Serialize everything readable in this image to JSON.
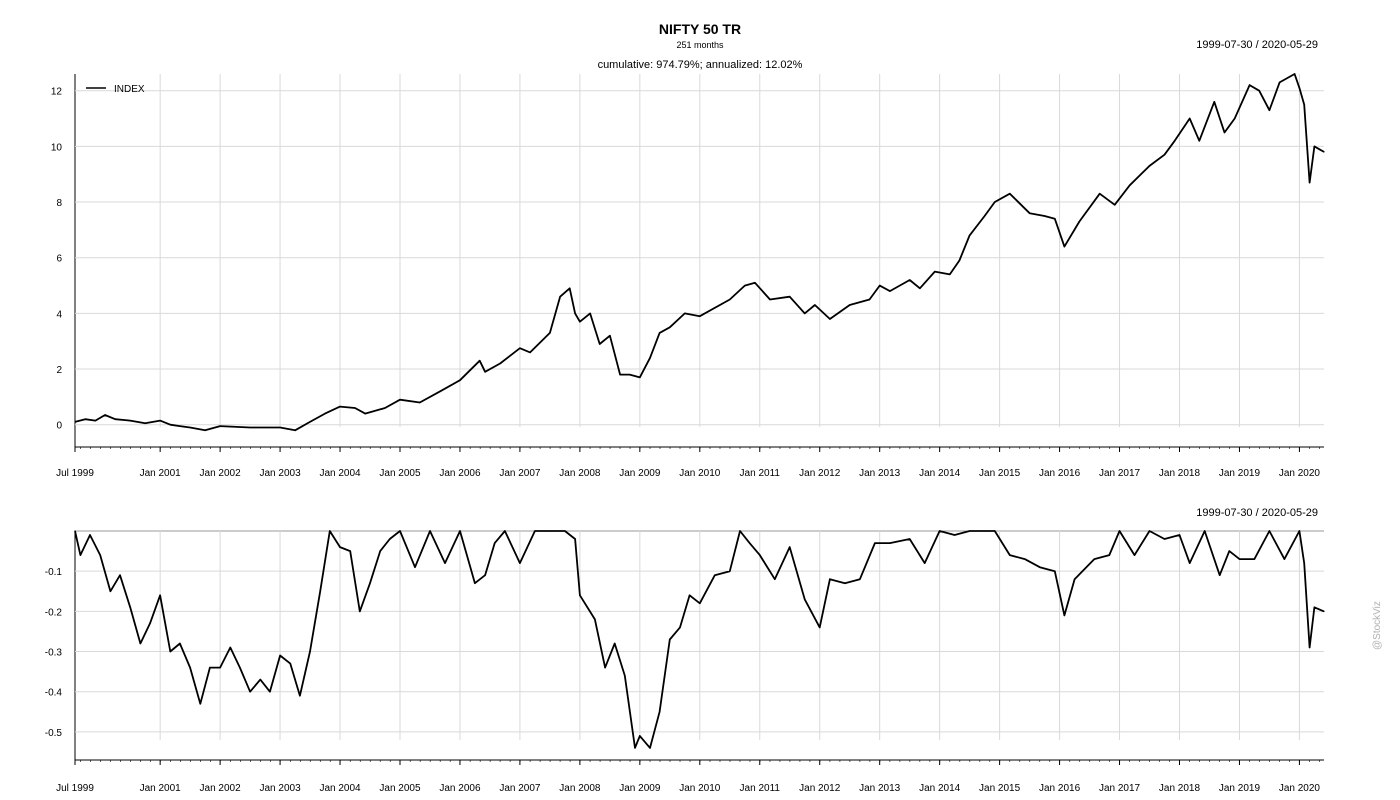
{
  "chart": {
    "title": "NIFTY 50 TR",
    "subtitle": "251 months",
    "cumulative_label": "cumulative: 974.79%; annualized: 12.02%",
    "date_range": "1999-07-30 / 2020-05-29",
    "watermark": "@StockViz",
    "line_color": "#000000",
    "grid_color": "#d9d9d9"
  },
  "chart_data": [
    {
      "type": "line",
      "legend_position": "top-left",
      "grid": true,
      "xlim": [
        1999.58,
        2020.41
      ],
      "ylim": [
        -0.8,
        12.6
      ],
      "y_ticks": [
        0,
        2,
        4,
        6,
        8,
        10,
        12
      ],
      "y_tick_labels": [
        "0",
        "2",
        "4",
        "6",
        "8",
        "10",
        "12"
      ],
      "x_ticks": [
        1999.5,
        2001.0,
        2002.0,
        2003.0,
        2004.0,
        2005.0,
        2006.0,
        2007.0,
        2008.0,
        2009.0,
        2010.0,
        2011.0,
        2012.0,
        2013.0,
        2014.0,
        2015.0,
        2016.0,
        2017.0,
        2018.0,
        2019.0,
        2020.0
      ],
      "x_tick_labels": [
        "Jul 1999",
        "Jan 2001",
        "Jan 2002",
        "Jan 2003",
        "Jan 2004",
        "Jan 2005",
        "Jan 2006",
        "Jan 2007",
        "Jan 2008",
        "Jan 2009",
        "Jan 2010",
        "Jan 2011",
        "Jan 2012",
        "Jan 2013",
        "Jan 2014",
        "Jan 2015",
        "Jan 2016",
        "Jan 2017",
        "Jan 2018",
        "Jan 2019",
        "Jan 2020"
      ],
      "series": [
        {
          "name": "INDEX",
          "x": [
            1999.58,
            1999.75,
            1999.92,
            2000.08,
            2000.25,
            2000.5,
            2000.75,
            2001.0,
            2001.17,
            2001.33,
            2001.5,
            2001.75,
            2002.0,
            2002.5,
            2003.0,
            2003.25,
            2003.5,
            2003.75,
            2004.0,
            2004.25,
            2004.42,
            2004.75,
            2005.0,
            2005.33,
            2005.67,
            2006.0,
            2006.33,
            2006.42,
            2006.67,
            2007.0,
            2007.17,
            2007.5,
            2007.67,
            2007.83,
            2007.92,
            2008.0,
            2008.17,
            2008.33,
            2008.5,
            2008.67,
            2008.83,
            2009.0,
            2009.17,
            2009.33,
            2009.5,
            2009.75,
            2010.0,
            2010.5,
            2010.75,
            2010.92,
            2011.17,
            2011.5,
            2011.75,
            2011.92,
            2012.17,
            2012.5,
            2012.83,
            2013.0,
            2013.17,
            2013.5,
            2013.67,
            2013.92,
            2014.17,
            2014.33,
            2014.5,
            2014.75,
            2014.92,
            2015.17,
            2015.5,
            2015.75,
            2015.92,
            2016.08,
            2016.33,
            2016.67,
            2016.92,
            2017.17,
            2017.5,
            2017.75,
            2017.92,
            2018.17,
            2018.33,
            2018.58,
            2018.75,
            2018.92,
            2019.17,
            2019.33,
            2019.5,
            2019.67,
            2019.92,
            2020.0,
            2020.08,
            2020.17,
            2020.25,
            2020.33,
            2020.41
          ],
          "values": [
            0.1,
            0.2,
            0.15,
            0.35,
            0.2,
            0.15,
            0.05,
            0.15,
            0.0,
            -0.05,
            -0.1,
            -0.2,
            -0.05,
            -0.1,
            -0.1,
            -0.2,
            0.1,
            0.4,
            0.65,
            0.6,
            0.4,
            0.6,
            0.9,
            0.8,
            1.2,
            1.6,
            2.3,
            1.9,
            2.2,
            2.75,
            2.6,
            3.3,
            4.6,
            4.9,
            4.0,
            3.7,
            4.0,
            2.9,
            3.2,
            1.8,
            1.8,
            1.7,
            2.4,
            3.3,
            3.5,
            4.0,
            3.9,
            4.5,
            5.0,
            5.1,
            4.5,
            4.6,
            4.0,
            4.3,
            3.8,
            4.3,
            4.5,
            5.0,
            4.8,
            5.2,
            4.9,
            5.5,
            5.4,
            5.9,
            6.8,
            7.5,
            8.0,
            8.3,
            7.6,
            7.5,
            7.4,
            6.4,
            7.3,
            8.3,
            7.9,
            8.6,
            9.3,
            9.7,
            10.2,
            11.0,
            10.2,
            11.6,
            10.5,
            11.0,
            12.2,
            12.0,
            11.3,
            12.3,
            12.6,
            12.1,
            11.5,
            8.7,
            10.0,
            9.9,
            9.8
          ]
        }
      ]
    },
    {
      "type": "line",
      "grid": true,
      "xlim": [
        1999.58,
        2020.41
      ],
      "ylim": [
        -0.57,
        0.0
      ],
      "y_ticks": [
        -0.1,
        -0.2,
        -0.3,
        -0.4,
        -0.5
      ],
      "y_tick_labels": [
        "-0.1",
        "-0.2",
        "-0.3",
        "-0.4",
        "-0.5"
      ],
      "x_ticks": [
        1999.5,
        2001.0,
        2002.0,
        2003.0,
        2004.0,
        2005.0,
        2006.0,
        2007.0,
        2008.0,
        2009.0,
        2010.0,
        2011.0,
        2012.0,
        2013.0,
        2014.0,
        2015.0,
        2016.0,
        2017.0,
        2018.0,
        2019.0,
        2020.0
      ],
      "x_tick_labels": [
        "Jul 1999",
        "Jan 2001",
        "Jan 2002",
        "Jan 2003",
        "Jan 2004",
        "Jan 2005",
        "Jan 2006",
        "Jan 2007",
        "Jan 2008",
        "Jan 2009",
        "Jan 2010",
        "Jan 2011",
        "Jan 2012",
        "Jan 2013",
        "Jan 2014",
        "Jan 2015",
        "Jan 2016",
        "Jan 2017",
        "Jan 2018",
        "Jan 2019",
        "Jan 2020"
      ],
      "series": [
        {
          "x": [
            1999.58,
            1999.67,
            1999.83,
            2000.0,
            2000.17,
            2000.33,
            2000.5,
            2000.67,
            2000.83,
            2001.0,
            2001.17,
            2001.33,
            2001.5,
            2001.67,
            2001.83,
            2002.0,
            2002.17,
            2002.33,
            2002.5,
            2002.67,
            2002.83,
            2003.0,
            2003.17,
            2003.33,
            2003.5,
            2003.67,
            2003.83,
            2004.0,
            2004.17,
            2004.33,
            2004.5,
            2004.67,
            2004.83,
            2005.0,
            2005.25,
            2005.5,
            2005.75,
            2006.0,
            2006.25,
            2006.42,
            2006.58,
            2006.75,
            2007.0,
            2007.25,
            2007.5,
            2007.75,
            2007.92,
            2008.0,
            2008.25,
            2008.42,
            2008.58,
            2008.75,
            2008.92,
            2009.0,
            2009.17,
            2009.33,
            2009.5,
            2009.67,
            2009.83,
            2010.0,
            2010.25,
            2010.5,
            2010.67,
            2010.83,
            2011.0,
            2011.25,
            2011.5,
            2011.75,
            2012.0,
            2012.17,
            2012.42,
            2012.67,
            2012.92,
            2013.17,
            2013.5,
            2013.75,
            2014.0,
            2014.25,
            2014.5,
            2014.75,
            2014.92,
            2015.17,
            2015.42,
            2015.67,
            2015.92,
            2016.08,
            2016.25,
            2016.58,
            2016.83,
            2017.0,
            2017.25,
            2017.5,
            2017.75,
            2018.0,
            2018.17,
            2018.42,
            2018.67,
            2018.83,
            2019.0,
            2019.25,
            2019.5,
            2019.75,
            2020.0,
            2020.08,
            2020.17,
            2020.25,
            2020.41
          ],
          "values": [
            0.0,
            -0.06,
            -0.01,
            -0.06,
            -0.15,
            -0.11,
            -0.19,
            -0.28,
            -0.23,
            -0.16,
            -0.3,
            -0.28,
            -0.34,
            -0.43,
            -0.34,
            -0.34,
            -0.29,
            -0.34,
            -0.4,
            -0.37,
            -0.4,
            -0.31,
            -0.33,
            -0.41,
            -0.3,
            -0.15,
            0.0,
            -0.04,
            -0.05,
            -0.2,
            -0.13,
            -0.05,
            -0.02,
            0.0,
            -0.09,
            0.0,
            -0.08,
            0.0,
            -0.13,
            -0.11,
            -0.03,
            0.0,
            -0.08,
            0.0,
            0.0,
            0.0,
            -0.02,
            -0.16,
            -0.22,
            -0.34,
            -0.28,
            -0.36,
            -0.54,
            -0.51,
            -0.54,
            -0.45,
            -0.27,
            -0.24,
            -0.16,
            -0.18,
            -0.11,
            -0.1,
            0.0,
            -0.03,
            -0.06,
            -0.12,
            -0.04,
            -0.17,
            -0.24,
            -0.12,
            -0.13,
            -0.12,
            -0.03,
            -0.03,
            -0.02,
            -0.08,
            0.0,
            -0.01,
            0.0,
            0.0,
            0.0,
            -0.06,
            -0.07,
            -0.09,
            -0.1,
            -0.21,
            -0.12,
            -0.07,
            -0.06,
            0.0,
            -0.06,
            0.0,
            -0.02,
            -0.01,
            -0.08,
            0.0,
            -0.11,
            -0.05,
            -0.07,
            -0.07,
            0.0,
            -0.07,
            0.0,
            -0.08,
            -0.29,
            -0.19,
            -0.2
          ]
        }
      ]
    }
  ]
}
